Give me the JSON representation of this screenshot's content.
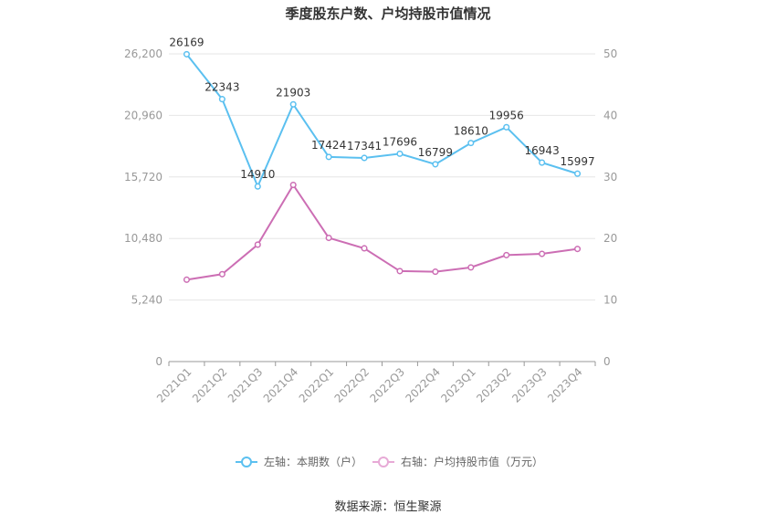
{
  "chart_data": {
    "type": "line",
    "title": "季度股东户数、户均持股市值情况",
    "categories": [
      "2021Q1",
      "2021Q2",
      "2021Q3",
      "2021Q4",
      "2022Q1",
      "2022Q2",
      "2022Q3",
      "2022Q4",
      "2023Q1",
      "2023Q2",
      "2023Q3",
      "2023Q4"
    ],
    "left_axis": {
      "ylim": [
        0,
        26200
      ],
      "ticks": [
        "0",
        "5,240",
        "10,480",
        "15,720",
        "20,960",
        "26,200"
      ]
    },
    "right_axis": {
      "ylim": [
        0,
        50
      ],
      "ticks": [
        "0",
        "10",
        "20",
        "30",
        "40",
        "50"
      ]
    },
    "series": [
      {
        "name": "左轴：本期数（户）",
        "axis": "left",
        "color": "#5bc0f0",
        "values": [
          26169,
          22343,
          14910,
          21903,
          17424,
          17341,
          17696,
          16799,
          18610,
          19956,
          16943,
          15997
        ],
        "labels": [
          "26169",
          "22343",
          "14910",
          "21903",
          "17424",
          "17341",
          "17696",
          "16799",
          "18610",
          "19956",
          "16943",
          "15997"
        ]
      },
      {
        "name": "右轴：户均持股市值（万元）",
        "axis": "right",
        "color": "#cc6eb4",
        "values": [
          13.3,
          14.2,
          19.0,
          28.7,
          20.1,
          18.4,
          14.7,
          14.6,
          15.3,
          17.3,
          17.5,
          18.3
        ]
      }
    ],
    "grid": true,
    "legend_position": "bottom"
  },
  "source": "数据来源：恒生聚源"
}
